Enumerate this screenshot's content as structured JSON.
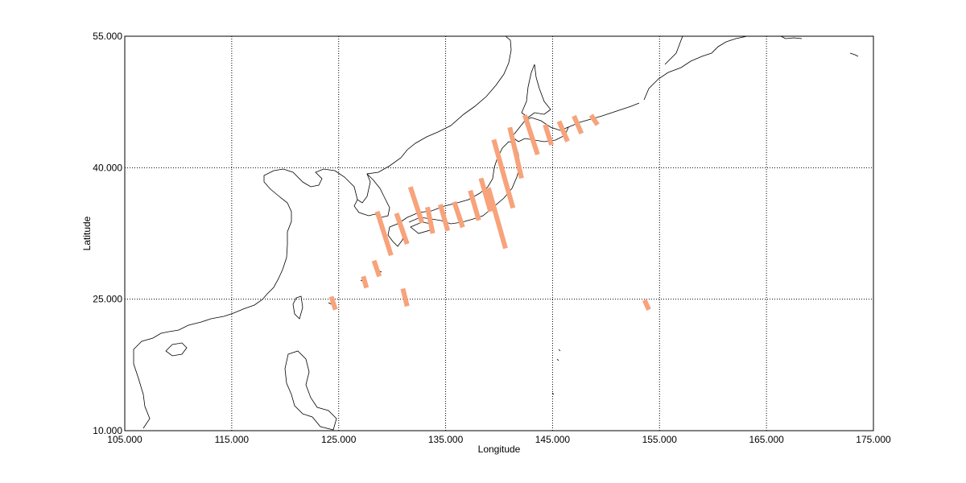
{
  "colors": {
    "swath": "#f7a37b",
    "coastline": "#000000",
    "grid": "#000000",
    "background": "#ffffff"
  },
  "chart_data": {
    "type": "scatter",
    "xlabel": "Longitude",
    "ylabel": "Latitude",
    "xlim": [
      105,
      175
    ],
    "ylim": [
      10,
      55
    ],
    "grid": true,
    "x_ticks": [
      105,
      115,
      125,
      135,
      145,
      155,
      165,
      175
    ],
    "y_ticks": [
      10,
      25,
      40,
      55
    ],
    "x_tick_labels": [
      "105.000",
      "115.000",
      "125.000",
      "135.000",
      "145.000",
      "155.000",
      "165.000",
      "175.000"
    ],
    "y_tick_labels": [
      "10.000",
      "25.000",
      "40.000",
      "55.000"
    ],
    "swaths": [
      {
        "lon1": 124.3,
        "lat1": 25.3,
        "lon2": 124.7,
        "lat2": 23.8
      },
      {
        "lon1": 127.3,
        "lat1": 27.6,
        "lon2": 127.6,
        "lat2": 26.3
      },
      {
        "lon1": 128.3,
        "lat1": 29.4,
        "lon2": 128.8,
        "lat2": 27.6
      },
      {
        "lon1": 131.0,
        "lat1": 26.2,
        "lon2": 131.4,
        "lat2": 24.2
      },
      {
        "lon1": 128.6,
        "lat1": 35.0,
        "lon2": 129.9,
        "lat2": 30.0
      },
      {
        "lon1": 130.4,
        "lat1": 34.8,
        "lon2": 131.4,
        "lat2": 31.3
      },
      {
        "lon1": 131.7,
        "lat1": 37.8,
        "lon2": 132.8,
        "lat2": 33.7
      },
      {
        "lon1": 133.3,
        "lat1": 35.5,
        "lon2": 133.8,
        "lat2": 32.5
      },
      {
        "lon1": 134.5,
        "lat1": 35.8,
        "lon2": 135.2,
        "lat2": 32.8
      },
      {
        "lon1": 135.8,
        "lat1": 36.1,
        "lon2": 136.6,
        "lat2": 33.2
      },
      {
        "lon1": 137.3,
        "lat1": 37.4,
        "lon2": 138.1,
        "lat2": 34.0
      },
      {
        "lon1": 138.3,
        "lat1": 38.8,
        "lon2": 139.2,
        "lat2": 35.0
      },
      {
        "lon1": 139.0,
        "lat1": 37.7,
        "lon2": 140.6,
        "lat2": 30.8
      },
      {
        "lon1": 139.5,
        "lat1": 43.2,
        "lon2": 141.3,
        "lat2": 35.4
      },
      {
        "lon1": 141.0,
        "lat1": 44.6,
        "lon2": 142.1,
        "lat2": 38.8
      },
      {
        "lon1": 142.4,
        "lat1": 46.0,
        "lon2": 143.6,
        "lat2": 41.5
      },
      {
        "lon1": 144.3,
        "lat1": 44.9,
        "lon2": 144.9,
        "lat2": 42.6
      },
      {
        "lon1": 145.6,
        "lat1": 45.3,
        "lon2": 146.4,
        "lat2": 43.0
      },
      {
        "lon1": 147.0,
        "lat1": 45.9,
        "lon2": 147.7,
        "lat2": 43.9
      },
      {
        "lon1": 148.6,
        "lat1": 46.0,
        "lon2": 149.2,
        "lat2": 44.9
      },
      {
        "lon1": 153.6,
        "lat1": 24.9,
        "lon2": 154.0,
        "lat2": 23.8
      }
    ]
  }
}
